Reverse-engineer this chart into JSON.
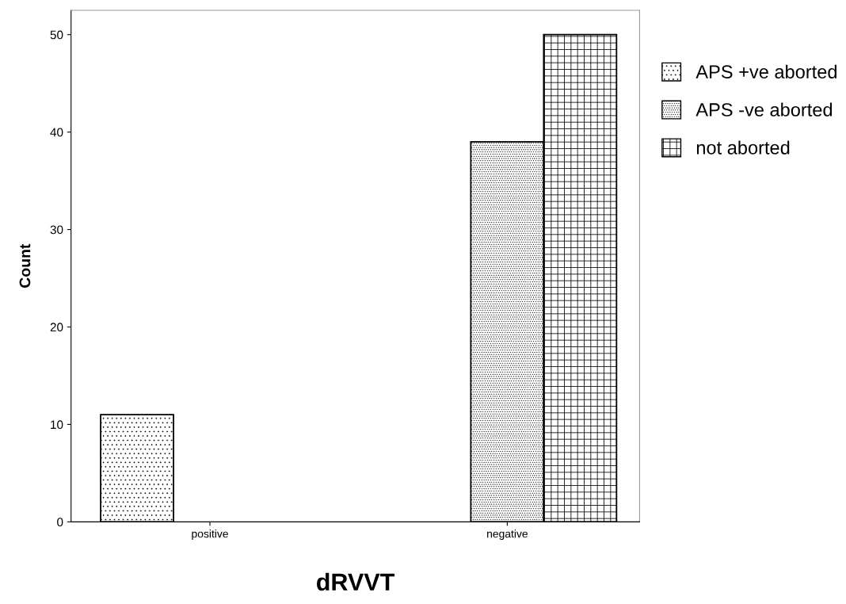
{
  "chart_data": {
    "type": "bar",
    "xlabel": "dRVVT",
    "ylabel": "Count",
    "categories": [
      "positive",
      "negative"
    ],
    "series": [
      {
        "name": "APS +ve aborted",
        "color": "#000000",
        "values": [
          11,
          null
        ]
      },
      {
        "name": "APS -ve aborted",
        "color": "#000000",
        "values": [
          null,
          39
        ]
      },
      {
        "name": "not aborted",
        "color": "#000000",
        "values": [
          null,
          50
        ]
      }
    ],
    "ylim": [
      0,
      52.5
    ],
    "yticks": [
      0,
      10,
      20,
      30,
      40,
      50
    ],
    "grid": false,
    "legend": "right"
  }
}
